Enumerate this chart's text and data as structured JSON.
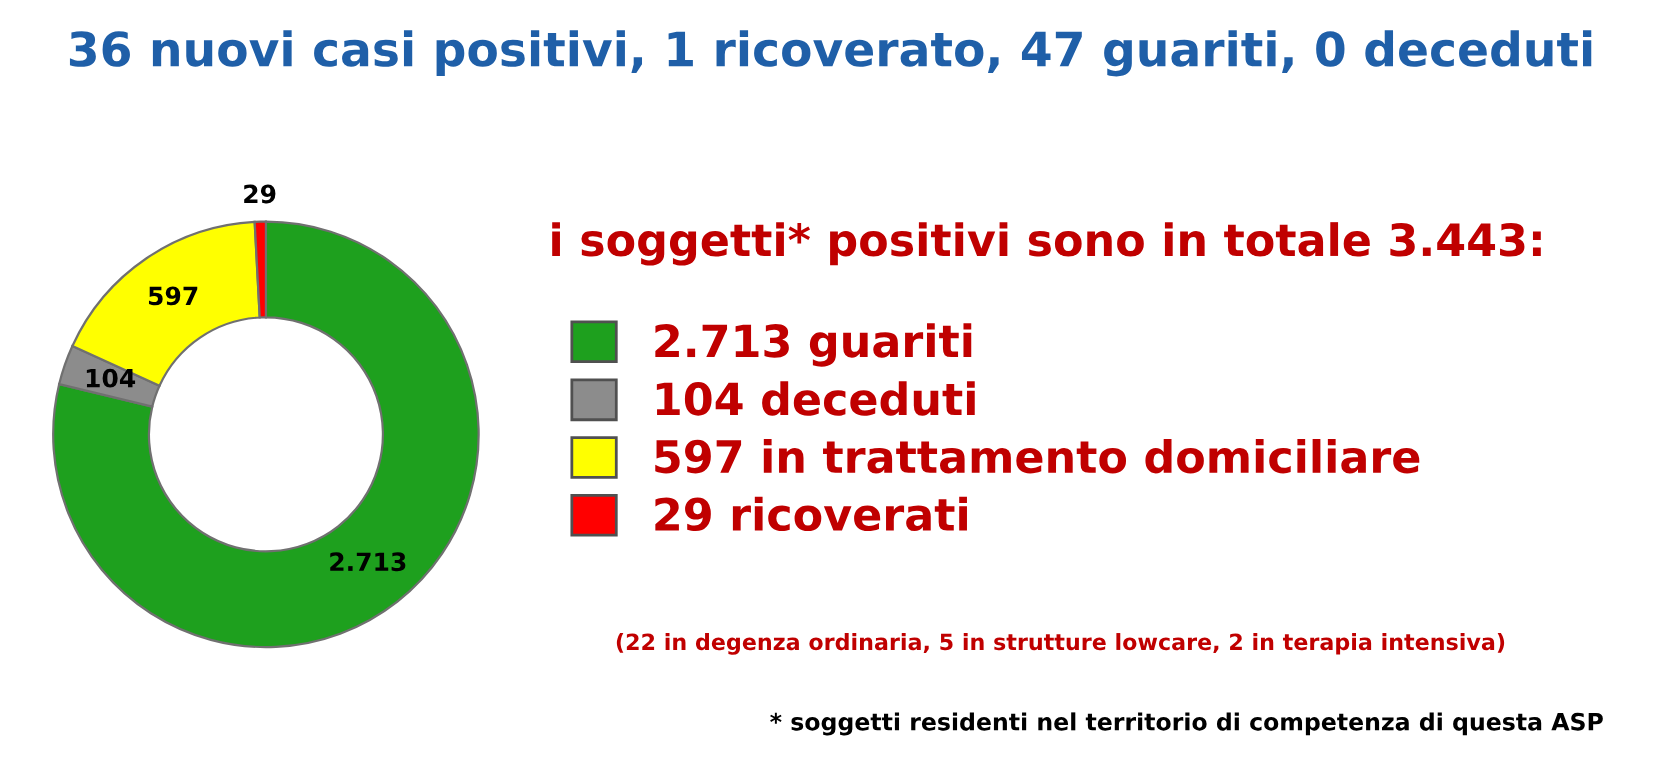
{
  "chart_data": {
    "type": "donut",
    "title": "36 nuovi casi positivi, 1 ricoverato, 47 guariti, 0 deceduti",
    "subtitle": "i soggetti* positivi sono in totale 3.443:",
    "categories": [
      "guariti",
      "deceduti",
      "in trattamento domiciliare",
      "ricoverati"
    ],
    "values": [
      2713,
      104,
      597,
      29
    ],
    "colors": [
      "#1ea01e",
      "#8c8c8c",
      "#ffff00",
      "#ff0000"
    ],
    "value_labels": [
      "2.713",
      "104",
      "597",
      "29"
    ],
    "legend": "right",
    "annotations": [
      "(22 in degenza ordinaria, 5 in strutture lowcare, 2 in terapia intensiva)",
      "* soggetti residenti nel territorio di competenza di questa ASP"
    ]
  }
}
